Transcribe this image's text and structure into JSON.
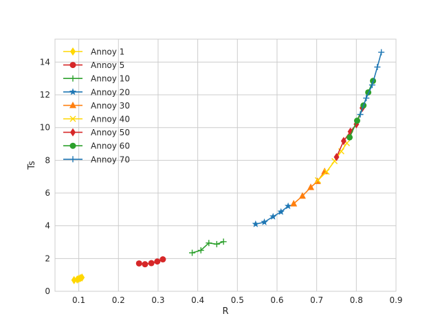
{
  "chart_data": {
    "type": "line",
    "title": "",
    "xlabel": "R",
    "ylabel": "Ts",
    "xlim": [
      0.04,
      0.9
    ],
    "ylim": [
      0,
      15.4
    ],
    "xticks": [
      0.1,
      0.2,
      0.3,
      0.4,
      0.5,
      0.6,
      0.7,
      0.8,
      0.9
    ],
    "xtick_labels": [
      "0.1",
      "0.2",
      "0.3",
      "0.4",
      "0.5",
      "0.6",
      "0.7",
      "0.8",
      "0.9"
    ],
    "yticks": [
      0,
      2,
      4,
      6,
      8,
      10,
      12,
      14
    ],
    "ytick_labels": [
      "0",
      "2",
      "4",
      "6",
      "8",
      "10",
      "12",
      "14"
    ],
    "grid": true,
    "legend_position": "upper-left",
    "series": [
      {
        "name": "Annoy 1",
        "color": "#ffd700",
        "marker": "diamond",
        "x": [
          0.088,
          0.096,
          0.1,
          0.104,
          0.108
        ],
        "y": [
          0.68,
          0.72,
          0.76,
          0.8,
          0.84
        ]
      },
      {
        "name": "Annoy 5",
        "color": "#d62728",
        "marker": "circle",
        "x": [
          0.252,
          0.267,
          0.283,
          0.298,
          0.312
        ],
        "y": [
          1.7,
          1.65,
          1.72,
          1.82,
          1.95
        ]
      },
      {
        "name": "Annoy 10",
        "color": "#2ca02c",
        "marker": "plus",
        "x": [
          0.386,
          0.408,
          0.428,
          0.448,
          0.465
        ],
        "y": [
          2.35,
          2.5,
          2.95,
          2.88,
          3.03
        ]
      },
      {
        "name": "Annoy 20",
        "color": "#1f77b4",
        "marker": "star",
        "x": [
          0.546,
          0.568,
          0.59,
          0.61,
          0.628
        ],
        "y": [
          4.1,
          4.22,
          4.56,
          4.85,
          5.2
        ]
      },
      {
        "name": "Annoy 30",
        "color": "#ff7f0e",
        "marker": "triangle",
        "x": [
          0.642,
          0.664,
          0.685,
          0.702,
          0.72
        ],
        "y": [
          5.35,
          5.82,
          6.35,
          6.72,
          7.32
        ]
      },
      {
        "name": "Annoy 40",
        "color": "#ffd700",
        "marker": "x",
        "x": [
          0.703,
          0.725,
          0.745,
          0.762,
          0.776
        ],
        "y": [
          6.78,
          7.3,
          7.95,
          8.55,
          9.05
        ]
      },
      {
        "name": "Annoy 50",
        "color": "#d62728",
        "marker": "diamond",
        "x": [
          0.75,
          0.768,
          0.785,
          0.8,
          0.815
        ],
        "y": [
          8.2,
          9.18,
          9.75,
          10.2,
          11.2
        ]
      },
      {
        "name": "Annoy 60",
        "color": "#2ca02c",
        "marker": "circle",
        "x": [
          0.783,
          0.802,
          0.818,
          0.83,
          0.842
        ],
        "y": [
          9.4,
          10.42,
          11.35,
          12.15,
          12.85
        ]
      },
      {
        "name": "Annoy 70",
        "color": "#1f77b4",
        "marker": "plus",
        "x": [
          0.81,
          0.825,
          0.84,
          0.853,
          0.863
        ],
        "y": [
          10.8,
          11.8,
          12.6,
          13.7,
          14.6
        ]
      }
    ]
  }
}
